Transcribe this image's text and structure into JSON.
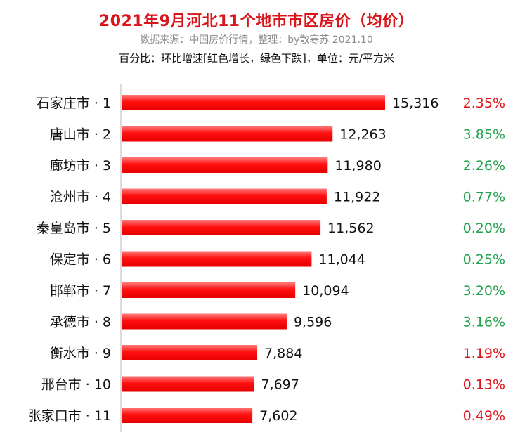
{
  "header": {
    "title": "2021年9月河北11个地市市区房价（均价）",
    "source": "数据来源：中国房价行情，整理：by散寒苏 2021.10",
    "note": "百分比：环比增速[红色增长，绿色下跌]，单位：元/平方米"
  },
  "colors": {
    "bar": "#ff1a1a",
    "increase": "#e0141a",
    "decrease": "#23a24d",
    "axis": "#d0d0d0"
  },
  "chart_data": {
    "type": "bar",
    "orientation": "horizontal",
    "categories": [
      "石家庄市 · 1",
      "唐山市 · 2",
      "廊坊市 · 3",
      "沧州市 · 4",
      "秦皇岛市 · 5",
      "保定市 · 6",
      "邯郸市 · 7",
      "承德市 · 8",
      "衡水市 · 9",
      "邢台市 · 10",
      "张家口市 · 11"
    ],
    "values": [
      15316,
      12263,
      11980,
      11922,
      11562,
      11044,
      10094,
      9596,
      7884,
      7697,
      7602
    ],
    "value_labels": [
      "15,316",
      "12,263",
      "11,980",
      "11,922",
      "11,562",
      "11,044",
      "10,094",
      "9,596",
      "7,884",
      "7,697",
      "7,602"
    ],
    "mom_change": [
      "2.35%",
      "3.85%",
      "2.26%",
      "0.77%",
      "0.20%",
      "0.25%",
      "3.20%",
      "3.16%",
      "1.19%",
      "0.13%",
      "0.49%"
    ],
    "mom_direction": [
      "up",
      "down",
      "down",
      "down",
      "down",
      "down",
      "down",
      "down",
      "up",
      "up",
      "up"
    ],
    "unit": "元/平方米",
    "grid": false
  }
}
